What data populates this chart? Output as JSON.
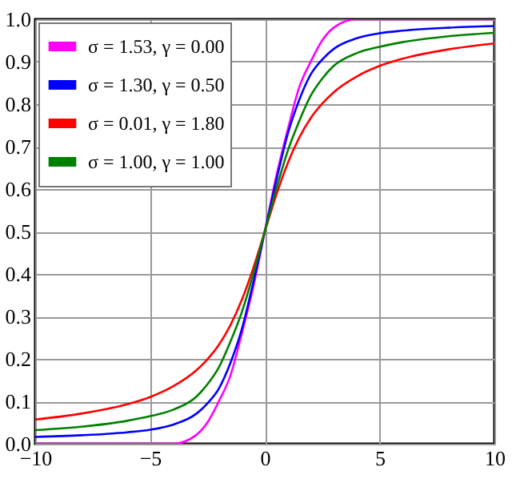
{
  "chart_data": {
    "type": "line",
    "x": [
      -10,
      -8,
      -6,
      -5,
      -4,
      -3,
      -2.5,
      -2,
      -1.5,
      -1,
      -0.5,
      0,
      0.5,
      1,
      1.5,
      2,
      2.5,
      3,
      4,
      5,
      6,
      8,
      10
    ],
    "xlim": [
      -10,
      10
    ],
    "xticks": [
      {
        "value": -10,
        "label": "−10"
      },
      {
        "value": -5,
        "label": "−5"
      },
      0,
      5,
      10
    ],
    "ylim": [
      0,
      1
    ],
    "yticks": [
      {
        "value": 0,
        "label": "0.0"
      },
      0.1,
      0.2,
      0.3,
      0.4,
      0.5,
      0.6,
      0.7,
      0.8,
      0.9,
      {
        "value": 1,
        "label": "1.0"
      }
    ],
    "grid": true,
    "legend": "top left",
    "line_style": "solid",
    "marker": "none",
    "series": [
      {
        "name": "σ = 1.53, γ = 0.00",
        "color": "#ff00ff",
        "values": [
          0,
          0,
          0,
          0,
          0,
          0.02,
          0.05,
          0.1,
          0.16,
          0.26,
          0.37,
          0.5,
          0.63,
          0.74,
          0.84,
          0.9,
          0.95,
          0.98,
          1,
          1,
          1,
          1,
          1
        ]
      },
      {
        "name": "σ = 1.30, γ = 0.50",
        "color": "#0000ff",
        "values": [
          0.016,
          0.02,
          0.027,
          0.033,
          0.045,
          0.07,
          0.095,
          0.13,
          0.19,
          0.27,
          0.38,
          0.5,
          0.62,
          0.73,
          0.81,
          0.87,
          0.905,
          0.93,
          0.955,
          0.967,
          0.973,
          0.98,
          0.984
        ]
      },
      {
        "name": "σ = 0.01, γ = 1.80",
        "color": "#ff0000",
        "values": [
          0.057,
          0.071,
          0.093,
          0.11,
          0.135,
          0.172,
          0.199,
          0.233,
          0.279,
          0.339,
          0.414,
          0.5,
          0.586,
          0.661,
          0.721,
          0.767,
          0.801,
          0.828,
          0.865,
          0.89,
          0.907,
          0.929,
          0.943
        ]
      },
      {
        "name": "σ = 1.00, γ = 1.00",
        "color": "#008000",
        "values": [
          0.032,
          0.04,
          0.054,
          0.065,
          0.08,
          0.11,
          0.14,
          0.18,
          0.24,
          0.31,
          0.4,
          0.5,
          0.6,
          0.69,
          0.76,
          0.82,
          0.86,
          0.89,
          0.92,
          0.935,
          0.946,
          0.96,
          0.968
        ]
      }
    ]
  }
}
